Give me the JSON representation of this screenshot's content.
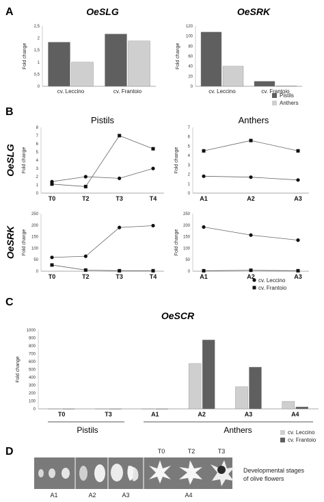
{
  "colors": {
    "dark": "#5f5f5f",
    "light": "#cfcfcf",
    "axis": "#aaaaaa",
    "line": "#666666"
  },
  "panels": {
    "a": "A",
    "b": "B",
    "c": "C",
    "d": "D"
  },
  "chart_data": [
    {
      "id": "a1",
      "type": "bar",
      "title": "OeSLG",
      "ylabel": "Fold change",
      "categories": [
        "cv. Leccino",
        "cv. Frantoio"
      ],
      "series": [
        {
          "name": "Pistils",
          "values": [
            1.83,
            2.17
          ]
        },
        {
          "name": "Anthers",
          "values": [
            1.0,
            1.88
          ]
        }
      ],
      "ylim": [
        0,
        2.5
      ],
      "yticks": [
        "0",
        "0,5",
        "1",
        "1,5",
        "2",
        "2,5"
      ]
    },
    {
      "id": "a2",
      "type": "bar",
      "title": "OeSRK",
      "ylabel": "Fold change",
      "categories": [
        "cv. Leccino",
        "cv. Frantoio"
      ],
      "series": [
        {
          "name": "Pistils",
          "values": [
            108,
            10
          ]
        },
        {
          "name": "Anthers",
          "values": [
            40,
            1
          ]
        }
      ],
      "ylim": [
        0,
        120
      ],
      "yticks": [
        "0",
        "20",
        "40",
        "60",
        "80",
        "100",
        "120"
      ],
      "legend": [
        "Pistils",
        "Anthers"
      ]
    },
    {
      "id": "b1",
      "type": "line",
      "title": "Pistils",
      "row_label": "OeSLG",
      "ylabel": "Fold change",
      "x": [
        "T0",
        "T2",
        "T3",
        "T4"
      ],
      "ylim": [
        0,
        8
      ],
      "yticks": [
        "0",
        "1",
        "2",
        "3",
        "4",
        "5",
        "6",
        "7",
        "8"
      ],
      "series": [
        {
          "name": "cv. Leccino",
          "marker": "circle",
          "values": [
            1.4,
            2.0,
            1.8,
            3.0
          ]
        },
        {
          "name": "cv. Frantoio",
          "marker": "square",
          "values": [
            1.1,
            0.8,
            7.0,
            5.4
          ]
        }
      ]
    },
    {
      "id": "b2",
      "type": "line",
      "title": "Anthers",
      "ylabel": "Fold change",
      "x": [
        "A1",
        "A2",
        "A3"
      ],
      "ylim": [
        0,
        7
      ],
      "yticks": [
        "0",
        "1",
        "2",
        "3",
        "4",
        "5",
        "6",
        "7"
      ],
      "series": [
        {
          "name": "cv. Leccino",
          "marker": "circle",
          "values": [
            1.8,
            1.7,
            1.4
          ]
        },
        {
          "name": "cv. Frantoio",
          "marker": "square",
          "values": [
            4.5,
            5.6,
            4.5
          ]
        }
      ]
    },
    {
      "id": "b3",
      "type": "line",
      "row_label": "OeSRK",
      "ylabel": "Fold change",
      "x": [
        "T0",
        "T2",
        "T3",
        "T4"
      ],
      "ylim": [
        0,
        250
      ],
      "yticks": [
        "0",
        "50",
        "100",
        "150",
        "200",
        "250"
      ],
      "series": [
        {
          "name": "cv. Leccino",
          "marker": "circle",
          "values": [
            60,
            65,
            190,
            198
          ]
        },
        {
          "name": "cv. Frantoio",
          "marker": "square",
          "values": [
            27,
            5,
            2,
            2
          ]
        }
      ]
    },
    {
      "id": "b4",
      "type": "line",
      "ylabel": "Fold change",
      "x": [
        "A1",
        "A2",
        "A3"
      ],
      "ylim": [
        0,
        250
      ],
      "yticks": [
        "0",
        "50",
        "100",
        "150",
        "200",
        "250"
      ],
      "series": [
        {
          "name": "cv. Leccino",
          "marker": "circle",
          "values": [
            192,
            157,
            135
          ]
        },
        {
          "name": "cv. Frantoio",
          "marker": "square",
          "values": [
            2,
            4,
            2
          ]
        }
      ],
      "legend": [
        "cv. Leccino",
        "cv. Frantoio"
      ]
    },
    {
      "id": "c",
      "type": "bar",
      "title": "OeSCR",
      "ylabel": "Fold change",
      "categories": [
        "T0",
        "T3",
        "A1",
        "A2",
        "A3",
        "A4"
      ],
      "series": [
        {
          "name": "cv. Leccino",
          "values": [
            1,
            1,
            1,
            575,
            280,
            95
          ]
        },
        {
          "name": "cv. Frantoio",
          "values": [
            1,
            1,
            1,
            875,
            530,
            25
          ]
        }
      ],
      "ylim": [
        0,
        1000
      ],
      "yticks": [
        "0",
        "100",
        "200",
        "300",
        "400",
        "500",
        "600",
        "700",
        "800",
        "900",
        "1000"
      ],
      "groups": [
        "Pistils",
        "Anthers"
      ],
      "legend": [
        "cv. Leccino",
        "cv. Frantoio"
      ]
    }
  ],
  "panel_d": {
    "stage_labels": [
      "A1",
      "A2",
      "A3",
      "A4"
    ],
    "top_labels": [
      "T0",
      "T2",
      "T3"
    ],
    "caption_line1": "Developmental stages",
    "caption_line2": "of olive flowers"
  }
}
